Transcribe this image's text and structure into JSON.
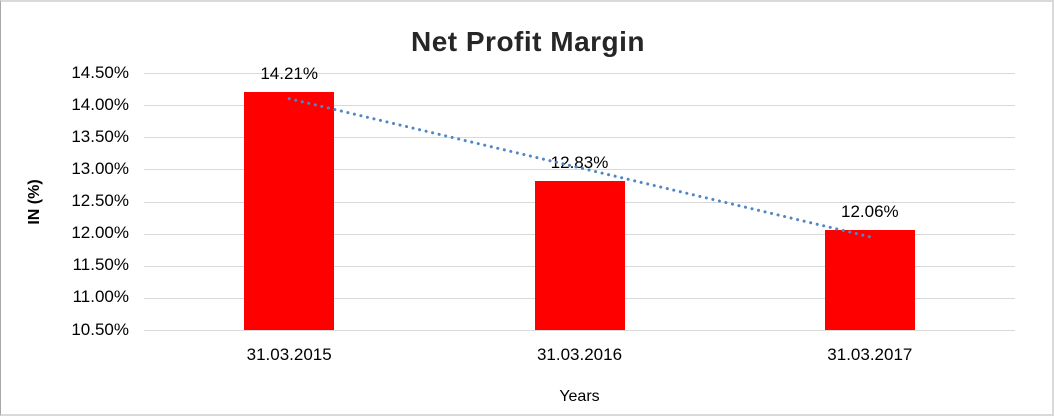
{
  "chart_data": {
    "type": "bar",
    "title": "Net Profit Margin",
    "xlabel": "Years",
    "ylabel": "IN (%)",
    "categories": [
      "31.03.2015",
      "31.03.2016",
      "31.03.2017"
    ],
    "values": [
      14.21,
      12.83,
      12.06
    ],
    "data_labels": [
      "14.21%",
      "12.83%",
      "12.06%"
    ],
    "y_ticks": [
      "14.50%",
      "14.00%",
      "13.50%",
      "13.00%",
      "12.50%",
      "12.00%",
      "11.50%",
      "11.00%",
      "10.50%"
    ],
    "ylim": [
      10.5,
      14.5
    ],
    "y_tick_step": 0.5,
    "legend": "none",
    "grid": "horizontal",
    "bar_color": "#ff0000",
    "gridline_color": "#d9d9d9",
    "trendline": {
      "type": "linear",
      "style": "dotted",
      "color": "#4f87c5"
    },
    "title_color": "#262626",
    "text_color": "#000000"
  }
}
